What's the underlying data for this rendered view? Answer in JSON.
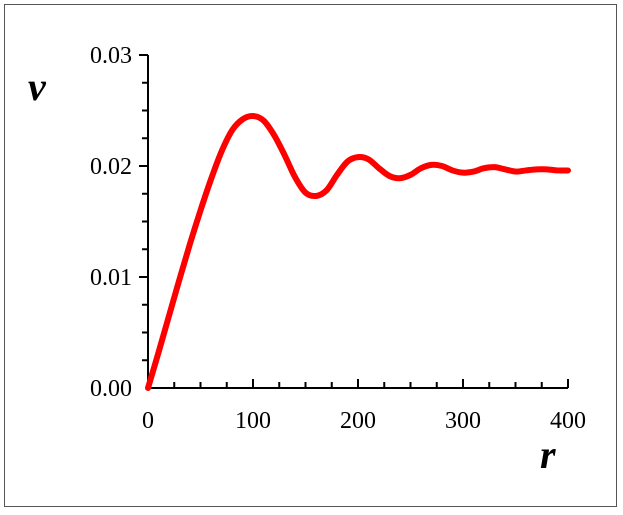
{
  "chart_data": {
    "type": "line",
    "xlabel": "r",
    "ylabel": "v",
    "xlim": [
      0,
      400
    ],
    "ylim": [
      0,
      0.03
    ],
    "x_ticks": [
      0,
      100,
      200,
      300,
      400
    ],
    "x_tick_labels": [
      "0",
      "100",
      "200",
      "300",
      "400"
    ],
    "y_ticks": [
      0,
      0.01,
      0.02,
      0.03
    ],
    "y_tick_labels": [
      "0.00",
      "0.01",
      "0.02",
      "0.03"
    ],
    "x_minor_step": 25,
    "y_minor_step": 0.0025,
    "grid": false,
    "color": "#ff0000",
    "series": [
      {
        "x": [
          0,
          10,
          20,
          30,
          40,
          50,
          60,
          70,
          80,
          90,
          100,
          110,
          120,
          130,
          140,
          150,
          160,
          170,
          180,
          190,
          200,
          210,
          220,
          230,
          240,
          250,
          260,
          270,
          280,
          290,
          300,
          310,
          320,
          330,
          340,
          350,
          360,
          370,
          380,
          390,
          400
        ],
        "y": [
          0.0,
          0.0032,
          0.0065,
          0.0098,
          0.013,
          0.016,
          0.0188,
          0.0213,
          0.0232,
          0.0242,
          0.0245,
          0.0241,
          0.0228,
          0.021,
          0.019,
          0.0176,
          0.0173,
          0.0178,
          0.0192,
          0.0204,
          0.0208,
          0.0206,
          0.0198,
          0.0191,
          0.0189,
          0.0192,
          0.0198,
          0.0201,
          0.02,
          0.0196,
          0.0194,
          0.0195,
          0.0198,
          0.0199,
          0.0197,
          0.0195,
          0.0196,
          0.0197,
          0.0197,
          0.0196,
          0.0196
        ]
      }
    ]
  }
}
